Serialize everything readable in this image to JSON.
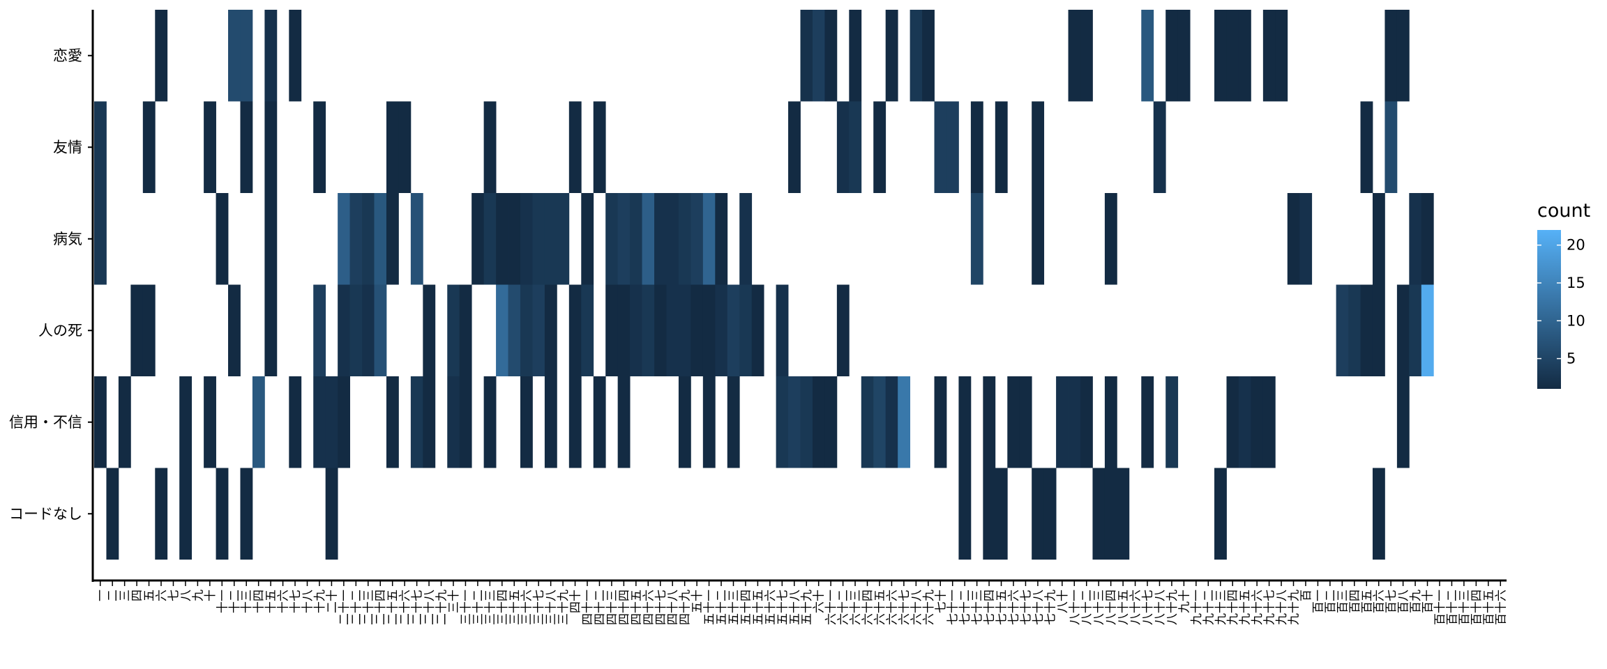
{
  "chart_data": {
    "type": "heatmap",
    "title": "",
    "xlabel": "",
    "ylabel": "",
    "rows": [
      "恋愛",
      "友情",
      "病気",
      "人の死",
      "信用・不信",
      "コードなし"
    ],
    "x_tick_labels": [
      "一",
      "二",
      "三",
      "四",
      "五",
      "六",
      "七",
      "八",
      "九",
      "十",
      "十一",
      "十二",
      "十三",
      "十四",
      "十五",
      "十六",
      "十七",
      "十八",
      "十九",
      "二十",
      "二十一",
      "二十二",
      "二十三",
      "二十四",
      "二十五",
      "二十六",
      "二十七",
      "二十八",
      "二十九",
      "三十",
      "三十一",
      "三十二",
      "三十三",
      "三十四",
      "三十五",
      "三十六",
      "三十七",
      "三十八",
      "三十九",
      "四十",
      "四十一",
      "四十二",
      "四十三",
      "四十四",
      "四十五",
      "四十六",
      "四十七",
      "四十八",
      "四十九",
      "五十",
      "五十一",
      "五十二",
      "五十三",
      "五十四",
      "五十五",
      "五十六",
      "五十七",
      "五十八",
      "五十九",
      "六十",
      "六十一",
      "六十二",
      "六十三",
      "六十四",
      "六十五",
      "六十六",
      "六十七",
      "六十八",
      "六十九",
      "七十",
      "七十一",
      "七十二",
      "七十三",
      "七十四",
      "七十五",
      "七十六",
      "七十七",
      "七十八",
      "七十九",
      "八十",
      "八十一",
      "八十二",
      "八十三",
      "八十四",
      "八十五",
      "八十六",
      "八十七",
      "八十八",
      "八十九",
      "九十",
      "九十一",
      "九十二",
      "九十三",
      "九十四",
      "九十五",
      "九十六",
      "九十七",
      "九十八",
      "九十九",
      "百",
      "百一",
      "百二",
      "百三",
      "百四",
      "百五",
      "百六",
      "百七",
      "百八",
      "百九",
      "百十",
      "百十一",
      "百十二",
      "百十三",
      "百十四",
      "百十五",
      "百十六"
    ],
    "cells": {
      "恋愛": [
        [
          5,
          1
        ],
        [
          11,
          6
        ],
        [
          12,
          6
        ],
        [
          14,
          2
        ],
        [
          16,
          1
        ],
        [
          58,
          2
        ],
        [
          59,
          4
        ],
        [
          60,
          1
        ],
        [
          62,
          1
        ],
        [
          65,
          1
        ],
        [
          67,
          3
        ],
        [
          68,
          1
        ],
        [
          80,
          1
        ],
        [
          81,
          1
        ],
        [
          86,
          8
        ],
        [
          88,
          1
        ],
        [
          89,
          1
        ],
        [
          92,
          1
        ],
        [
          93,
          1
        ],
        [
          94,
          1
        ],
        [
          96,
          1
        ],
        [
          97,
          1
        ],
        [
          106,
          1
        ],
        [
          107,
          1
        ]
      ],
      "友情": [
        [
          0,
          3
        ],
        [
          4,
          1
        ],
        [
          9,
          1
        ],
        [
          12,
          1
        ],
        [
          14,
          1
        ],
        [
          18,
          1
        ],
        [
          24,
          1
        ],
        [
          25,
          1
        ],
        [
          32,
          1
        ],
        [
          39,
          1
        ],
        [
          41,
          1
        ],
        [
          57,
          1
        ],
        [
          61,
          2
        ],
        [
          62,
          3
        ],
        [
          64,
          1
        ],
        [
          69,
          4
        ],
        [
          70,
          4
        ],
        [
          72,
          1
        ],
        [
          74,
          1
        ],
        [
          77,
          1
        ],
        [
          87,
          2
        ],
        [
          104,
          1
        ],
        [
          106,
          6
        ]
      ],
      "病気": [
        [
          0,
          3
        ],
        [
          10,
          1
        ],
        [
          14,
          1
        ],
        [
          20,
          9
        ],
        [
          21,
          4
        ],
        [
          22,
          3
        ],
        [
          23,
          8
        ],
        [
          24,
          1
        ],
        [
          26,
          7
        ],
        [
          31,
          1
        ],
        [
          32,
          3
        ],
        [
          33,
          1
        ],
        [
          34,
          1
        ],
        [
          35,
          2
        ],
        [
          36,
          3
        ],
        [
          37,
          3
        ],
        [
          38,
          3
        ],
        [
          40,
          1
        ],
        [
          42,
          3
        ],
        [
          43,
          4
        ],
        [
          44,
          3
        ],
        [
          45,
          9
        ],
        [
          46,
          2
        ],
        [
          47,
          2
        ],
        [
          48,
          3
        ],
        [
          49,
          4
        ],
        [
          50,
          10
        ],
        [
          51,
          1
        ],
        [
          53,
          2
        ],
        [
          72,
          5
        ],
        [
          77,
          1
        ],
        [
          83,
          1
        ],
        [
          98,
          1
        ],
        [
          99,
          2
        ],
        [
          105,
          1
        ],
        [
          108,
          2
        ],
        [
          109,
          1
        ]
      ],
      "人の死": [
        [
          3,
          1
        ],
        [
          4,
          1
        ],
        [
          11,
          1
        ],
        [
          14,
          1
        ],
        [
          18,
          4
        ],
        [
          20,
          2
        ],
        [
          21,
          3
        ],
        [
          22,
          2
        ],
        [
          23,
          7
        ],
        [
          27,
          1
        ],
        [
          29,
          3
        ],
        [
          30,
          1
        ],
        [
          33,
          11
        ],
        [
          34,
          6
        ],
        [
          35,
          3
        ],
        [
          36,
          4
        ],
        [
          37,
          1
        ],
        [
          39,
          1
        ],
        [
          40,
          3
        ],
        [
          42,
          1
        ],
        [
          43,
          1
        ],
        [
          44,
          2
        ],
        [
          45,
          3
        ],
        [
          46,
          1
        ],
        [
          47,
          2
        ],
        [
          48,
          2
        ],
        [
          49,
          1
        ],
        [
          50,
          1
        ],
        [
          51,
          2
        ],
        [
          52,
          4
        ],
        [
          53,
          3
        ],
        [
          54,
          1
        ],
        [
          56,
          2
        ],
        [
          61,
          1
        ],
        [
          102,
          4
        ],
        [
          103,
          3
        ],
        [
          104,
          1
        ],
        [
          105,
          1
        ],
        [
          107,
          1
        ],
        [
          108,
          3
        ],
        [
          109,
          21
        ]
      ],
      "信用・不信": [
        [
          0,
          1
        ],
        [
          2,
          1
        ],
        [
          7,
          1
        ],
        [
          9,
          1
        ],
        [
          13,
          8
        ],
        [
          16,
          1
        ],
        [
          18,
          2
        ],
        [
          19,
          2
        ],
        [
          20,
          1
        ],
        [
          24,
          1
        ],
        [
          26,
          3
        ],
        [
          27,
          1
        ],
        [
          29,
          2
        ],
        [
          30,
          1
        ],
        [
          32,
          1
        ],
        [
          35,
          1
        ],
        [
          37,
          1
        ],
        [
          39,
          1
        ],
        [
          41,
          1
        ],
        [
          43,
          1
        ],
        [
          48,
          1
        ],
        [
          50,
          1
        ],
        [
          52,
          1
        ],
        [
          56,
          3
        ],
        [
          57,
          4
        ],
        [
          58,
          3
        ],
        [
          59,
          1
        ],
        [
          60,
          1
        ],
        [
          63,
          3
        ],
        [
          64,
          5
        ],
        [
          65,
          2
        ],
        [
          66,
          13
        ],
        [
          69,
          1
        ],
        [
          71,
          1
        ],
        [
          73,
          1
        ],
        [
          75,
          1
        ],
        [
          76,
          1
        ],
        [
          79,
          2
        ],
        [
          80,
          2
        ],
        [
          81,
          1
        ],
        [
          83,
          1
        ],
        [
          86,
          1
        ],
        [
          88,
          3
        ],
        [
          93,
          1
        ],
        [
          94,
          2
        ],
        [
          95,
          1
        ],
        [
          96,
          1
        ],
        [
          107,
          1
        ]
      ],
      "コードなし": [
        [
          1,
          1
        ],
        [
          5,
          1
        ],
        [
          7,
          1
        ],
        [
          10,
          1
        ],
        [
          12,
          1
        ],
        [
          19,
          1
        ],
        [
          71,
          1
        ],
        [
          73,
          1
        ],
        [
          74,
          1
        ],
        [
          77,
          1
        ],
        [
          78,
          1
        ],
        [
          82,
          1
        ],
        [
          83,
          1
        ],
        [
          84,
          1
        ],
        [
          92,
          1
        ],
        [
          105,
          1
        ]
      ]
    },
    "color_scale": {
      "title": "count",
      "min": 1,
      "max": 22,
      "low_color": "#132b43",
      "high_color": "#56b1f7",
      "ticks": [
        5,
        10,
        15,
        20
      ]
    },
    "grid": false,
    "legend_position": "right"
  }
}
